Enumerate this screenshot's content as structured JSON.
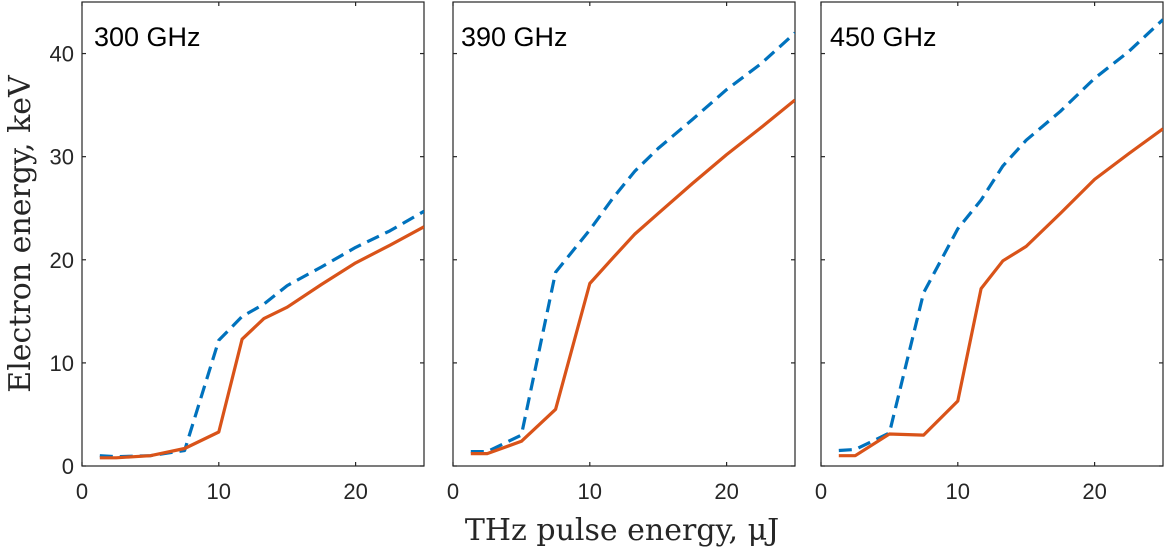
{
  "chart_data": {
    "type": "line",
    "xlabel": "THz pulse energy, μJ",
    "ylabel": "Electron energy, keV",
    "xlim": [
      0,
      25
    ],
    "ylim": [
      0,
      45
    ],
    "xticks": [
      0,
      10,
      20
    ],
    "yticks": [
      0,
      10,
      20,
      30,
      40
    ],
    "series_styles": [
      {
        "name": "dashed",
        "color": "#0072BD",
        "dash": "dashed"
      },
      {
        "name": "solid",
        "color": "#D95319",
        "dash": "solid"
      }
    ],
    "panels": [
      {
        "title": "300 GHz",
        "series": [
          {
            "name": "dashed",
            "x": [
              1.3,
              2.5,
              5,
              7.5,
              10,
              11.7,
              13.3,
              15,
              17.5,
              20,
              22.5,
              25
            ],
            "y": [
              1.0,
              0.9,
              1.0,
              1.5,
              12.2,
              14.5,
              15.7,
              17.5,
              19.3,
              21.2,
              22.8,
              24.7
            ]
          },
          {
            "name": "solid",
            "x": [
              1.3,
              2.5,
              5,
              7.5,
              10,
              11.7,
              13.3,
              15,
              17.5,
              20,
              22.5,
              25
            ],
            "y": [
              0.8,
              0.8,
              1.0,
              1.7,
              3.3,
              12.3,
              14.3,
              15.4,
              17.6,
              19.7,
              21.4,
              23.2
            ]
          }
        ]
      },
      {
        "title": "390 GHz",
        "series": [
          {
            "name": "dashed",
            "x": [
              1.3,
              2.5,
              5,
              7.5,
              10,
              11.7,
              13.3,
              15,
              17.5,
              20,
              22.5,
              25
            ],
            "y": [
              1.4,
              1.4,
              3.0,
              18.8,
              22.9,
              26.0,
              28.6,
              30.8,
              33.6,
              36.5,
              39.0,
              42.0
            ]
          },
          {
            "name": "solid",
            "x": [
              1.3,
              2.5,
              5,
              7.5,
              10,
              11.7,
              13.3,
              15,
              17.5,
              20,
              22.5,
              25
            ],
            "y": [
              1.2,
              1.2,
              2.4,
              5.5,
              17.7,
              20.2,
              22.5,
              24.5,
              27.4,
              30.2,
              32.8,
              35.5
            ]
          }
        ]
      },
      {
        "title": "450 GHz",
        "series": [
          {
            "name": "dashed",
            "x": [
              1.3,
              2.5,
              5,
              7.5,
              10,
              11.7,
              13.3,
              15,
              17.5,
              20,
              22.5,
              25
            ],
            "y": [
              1.5,
              1.6,
              3.2,
              16.8,
              23.0,
              25.8,
              29.1,
              31.6,
              34.4,
              37.6,
              40.2,
              43.3
            ]
          },
          {
            "name": "solid",
            "x": [
              1.3,
              2.5,
              5,
              7.5,
              10,
              11.7,
              13.3,
              15,
              17.5,
              20,
              22.5,
              25
            ],
            "y": [
              1.0,
              1.0,
              3.1,
              3.0,
              6.3,
              17.2,
              19.9,
              21.3,
              24.5,
              27.8,
              30.3,
              32.7
            ]
          }
        ]
      }
    ]
  }
}
